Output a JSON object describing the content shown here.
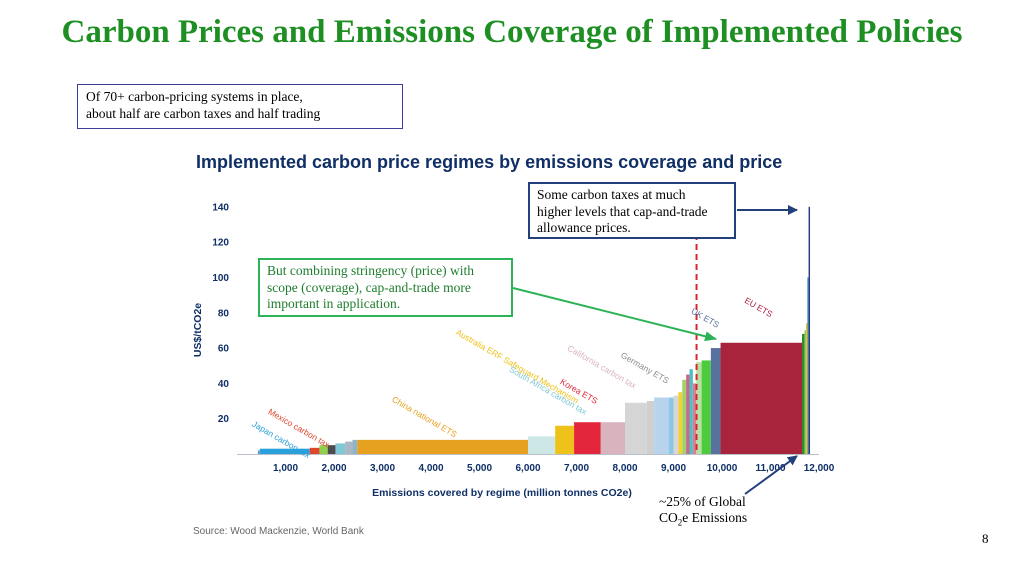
{
  "slide": {
    "title": "Carbon Prices and Emissions Coverage of Implemented Policies",
    "intro_box_lines": [
      "Of 70+ carbon-pricing systems in place,",
      "about half are carbon taxes and half trading"
    ],
    "high_box_lines": [
      "Some carbon taxes at much",
      "higher levels that cap-and-trade",
      "allowance prices."
    ],
    "scope_box_lines": [
      "But combining stringency (price) with",
      "scope (coverage), cap-and-trade more",
      "important in application."
    ],
    "global_note_line1": "~25% of Global",
    "global_note_co": "CO",
    "global_note_sub": "2",
    "global_note_rest": "e Emissions",
    "source": "Source: Wood Mackenzie, World Bank",
    "page_number": "8"
  },
  "chart_data": {
    "type": "bar",
    "title": "Implemented carbon price regimes by emissions coverage and price",
    "xlabel": "Emissions covered by regime (million tonnes CO2e)",
    "ylabel": "US$/tCO2e",
    "xlim": [
      0,
      12000
    ],
    "ylim": [
      0,
      145
    ],
    "x_ticks": [
      1000,
      2000,
      3000,
      4000,
      5000,
      6000,
      7000,
      8000,
      9000,
      10000,
      11000,
      12000
    ],
    "x_tick_labels": [
      "1,000",
      "2,000",
      "3,000",
      "4,000",
      "5,000",
      "6,000",
      "7,000",
      "8,000",
      "9,000",
      "10,000",
      "11,000",
      "12,000"
    ],
    "y_ticks": [
      20,
      40,
      60,
      80,
      100,
      120,
      140
    ],
    "grid": false,
    "threshold_line_x": 9475,
    "regimes": [
      {
        "x0": 430,
        "x1": 470,
        "value": 2,
        "color": "#5a9bd5"
      },
      {
        "x0": 470,
        "x1": 1500,
        "value": 3,
        "color": "#2aa0dc"
      },
      {
        "x0": 1500,
        "x1": 1700,
        "value": 3.5,
        "color": "#e0462d"
      },
      {
        "x0": 1700,
        "x1": 1870,
        "value": 5,
        "color": "#8fd14a"
      },
      {
        "x0": 1870,
        "x1": 2030,
        "value": 5,
        "color": "#4c4c4c"
      },
      {
        "x0": 2030,
        "x1": 2230,
        "value": 6,
        "color": "#7fc8d6"
      },
      {
        "x0": 2230,
        "x1": 2380,
        "value": 7,
        "color": "#aab7c4"
      },
      {
        "x0": 2380,
        "x1": 2480,
        "value": 8,
        "color": "#8fb4c8"
      },
      {
        "x0": 2480,
        "x1": 6000,
        "value": 8,
        "color": "#e6a120"
      },
      {
        "x0": 6000,
        "x1": 6560,
        "value": 10,
        "color": "#cde7e7"
      },
      {
        "x0": 6560,
        "x1": 6950,
        "value": 16,
        "color": "#eec21b"
      },
      {
        "x0": 6950,
        "x1": 7500,
        "value": 18,
        "color": "#e3263b"
      },
      {
        "x0": 7500,
        "x1": 8000,
        "value": 18,
        "color": "#d9b4bf"
      },
      {
        "x0": 8000,
        "x1": 8450,
        "value": 29,
        "color": "#d5d5d5"
      },
      {
        "x0": 8450,
        "x1": 8600,
        "value": 30,
        "color": "#cfcfcf"
      },
      {
        "x0": 8600,
        "x1": 8900,
        "value": 32,
        "color": "#b8d4ec"
      },
      {
        "x0": 8900,
        "x1": 9000,
        "value": 32,
        "color": "#8cc7e7"
      },
      {
        "x0": 9000,
        "x1": 9100,
        "value": 33,
        "color": "#d7d7d7"
      },
      {
        "x0": 9100,
        "x1": 9180,
        "value": 35,
        "color": "#f2cf3b"
      },
      {
        "x0": 9180,
        "x1": 9260,
        "value": 42,
        "color": "#9ed36a"
      },
      {
        "x0": 9260,
        "x1": 9330,
        "value": 45,
        "color": "#c56a8e"
      },
      {
        "x0": 9330,
        "x1": 9400,
        "value": 48,
        "color": "#4ec0c0"
      },
      {
        "x0": 9400,
        "x1": 9470,
        "value": 40,
        "color": "#e07a9a"
      },
      {
        "x0": 9470,
        "x1": 9580,
        "value": 52,
        "color": "#b8e0a0"
      },
      {
        "x0": 9580,
        "x1": 9770,
        "value": 53,
        "color": "#4ccb3f"
      },
      {
        "x0": 9770,
        "x1": 9970,
        "value": 60,
        "color": "#59719f"
      },
      {
        "x0": 9970,
        "x1": 11650,
        "value": 63,
        "color": "#a8243d"
      },
      {
        "x0": 11650,
        "x1": 11700,
        "value": 68,
        "color": "#2c8c2c"
      },
      {
        "x0": 11700,
        "x1": 11730,
        "value": 70,
        "color": "#88c450"
      },
      {
        "x0": 11730,
        "x1": 11760,
        "value": 74,
        "color": "#f0c419"
      },
      {
        "x0": 11760,
        "x1": 11785,
        "value": 100,
        "color": "#3c8cc8"
      },
      {
        "x0": 11785,
        "x1": 11815,
        "value": 140,
        "color": "#24407c"
      }
    ],
    "annotations": [
      {
        "text": "Japan carbon tax",
        "color": "#2a9fd8",
        "x": 300,
        "y": 16
      },
      {
        "text": "Mexico carbon tax",
        "color": "#e0462d",
        "x": 630,
        "y": 23
      },
      {
        "text": "China national ETS",
        "color": "#e6a120",
        "x": 3180,
        "y": 30
      },
      {
        "text": "Australia ERF Safeguard Mechanism",
        "color": "#eec21b",
        "x": 4500,
        "y": 68
      },
      {
        "text": "South Africa carbon tax",
        "color": "#7fc8d6",
        "x": 5600,
        "y": 47
      },
      {
        "text": "Korea ETS",
        "color": "#e3263b",
        "x": 6650,
        "y": 40
      },
      {
        "text": "California carbon tax",
        "color": "#d9b4bf",
        "x": 6800,
        "y": 59
      },
      {
        "text": "Germany ETS",
        "color": "#8c8c8c",
        "x": 7900,
        "y": 55
      },
      {
        "text": "UK ETS",
        "color": "#59719f",
        "x": 9350,
        "y": 80
      },
      {
        "text": "EU ETS",
        "color": "#a8243d",
        "x": 10450,
        "y": 86
      }
    ]
  }
}
